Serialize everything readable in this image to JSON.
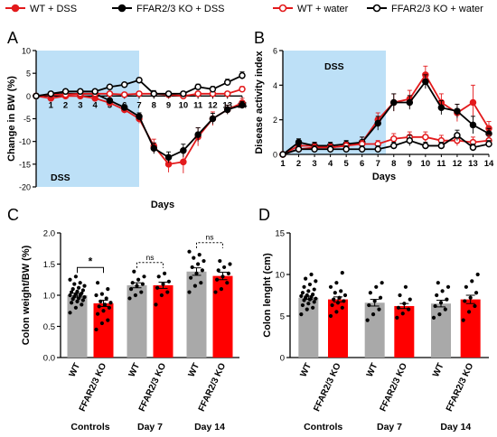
{
  "legend": {
    "entries": [
      {
        "label": "WT + DSS",
        "color": "#e31a1c",
        "marker": "filled"
      },
      {
        "label": "FFAR2/3 KO + DSS",
        "color": "#000000",
        "marker": "filled"
      },
      {
        "label": "WT + water",
        "color": "#e31a1c",
        "marker": "open"
      },
      {
        "label": "FFAR2/3 KO + water",
        "color": "#000000",
        "marker": "open"
      }
    ]
  },
  "chart_data": [
    {
      "panel": "A",
      "type": "line",
      "xlabel": "Days",
      "ylabel": "Change in BW (%)",
      "ylim": [
        -20,
        10
      ],
      "yticks": [
        10,
        5,
        0,
        -5,
        -10,
        -15,
        -20
      ],
      "x": [
        0,
        1,
        2,
        3,
        4,
        5,
        6,
        7,
        8,
        9,
        10,
        11,
        12,
        13,
        14
      ],
      "xticks": [
        1,
        2,
        3,
        4,
        5,
        6,
        7,
        8,
        9,
        10,
        11,
        12,
        13,
        14
      ],
      "shaded_region": {
        "from": 0,
        "to": 7,
        "label": "DSS",
        "color": "#bde0f7"
      },
      "series": [
        {
          "name": "WT + DSS",
          "values": [
            0,
            -0.5,
            0,
            0,
            -0.5,
            -1.5,
            -3,
            -5,
            -11,
            -15,
            -14.5,
            -9,
            -5,
            -3,
            -1.5
          ],
          "err": [
            0,
            0.5,
            0.5,
            0.5,
            0.5,
            0.7,
            0.8,
            1.0,
            1.5,
            1.8,
            2.5,
            2.0,
            1.5,
            1.0,
            1.0
          ],
          "color": "#e31a1c",
          "marker": "filled"
        },
        {
          "name": "FFAR2/3 KO + DSS",
          "values": [
            0,
            0.3,
            0.5,
            0.5,
            0.5,
            -1,
            -2.5,
            -4.5,
            -11.5,
            -13.5,
            -12,
            -8.5,
            -5,
            -3,
            -2
          ],
          "err": [
            0,
            0.3,
            0.3,
            0.3,
            0.4,
            0.5,
            0.6,
            0.8,
            1.2,
            1.2,
            1.4,
            1.5,
            1.2,
            1.0,
            0.8
          ],
          "color": "#000000",
          "marker": "filled"
        },
        {
          "name": "WT + water",
          "values": [
            0,
            0.3,
            0.3,
            0.5,
            0.5,
            0.5,
            0.3,
            0.5,
            0.5,
            0.3,
            0,
            0.5,
            0.5,
            0.5,
            1.5
          ],
          "err": [
            0,
            0.3,
            0.3,
            0.3,
            0.3,
            0.3,
            0.3,
            0.4,
            0.4,
            0.4,
            0.4,
            0.4,
            0.4,
            0.5,
            0.6
          ],
          "color": "#e31a1c",
          "marker": "open"
        },
        {
          "name": "FFAR2/3 KO + water",
          "values": [
            0,
            0.5,
            1,
            1,
            1,
            2,
            2.5,
            3.5,
            0.5,
            0.5,
            0.5,
            2,
            1.5,
            3,
            4.5
          ],
          "err": [
            0,
            0.3,
            0.3,
            0.3,
            0.4,
            0.4,
            0.4,
            0.5,
            0.7,
            0.5,
            0.5,
            0.6,
            0.6,
            0.7,
            0.8
          ],
          "color": "#000000",
          "marker": "open"
        }
      ]
    },
    {
      "panel": "B",
      "type": "line",
      "xlabel": "Days",
      "ylabel": "Disease activity index",
      "ylim": [
        0,
        6
      ],
      "yticks": [
        0,
        2,
        4,
        6
      ],
      "x": [
        1,
        2,
        3,
        4,
        5,
        6,
        7,
        8,
        9,
        10,
        11,
        12,
        13,
        14
      ],
      "xticks": [
        1,
        2,
        3,
        4,
        5,
        6,
        7,
        8,
        9,
        10,
        11,
        12,
        13,
        14
      ],
      "shaded_region": {
        "from": 1,
        "to": 7.5,
        "label": "DSS",
        "color": "#bde0f7"
      },
      "series": [
        {
          "name": "WT + DSS",
          "values": [
            0,
            0.5,
            0.5,
            0.4,
            0.5,
            0.7,
            2,
            3,
            3.2,
            4.6,
            3,
            2.4,
            3,
            1.5
          ],
          "err": [
            0,
            0.2,
            0.2,
            0.2,
            0.2,
            0.3,
            0.4,
            0.5,
            0.5,
            0.5,
            0.5,
            0.5,
            1.0,
            0.4
          ],
          "color": "#e31a1c",
          "marker": "filled"
        },
        {
          "name": "FFAR2/3 KO + DSS",
          "values": [
            0,
            0.7,
            0.5,
            0.5,
            0.6,
            0.7,
            1.8,
            3,
            3,
            4.2,
            2.7,
            2.5,
            1.7,
            1.2
          ],
          "err": [
            0,
            0.2,
            0.2,
            0.2,
            0.2,
            0.3,
            0.4,
            0.5,
            0.4,
            0.4,
            0.4,
            0.4,
            0.5,
            0.3
          ],
          "color": "#000000",
          "marker": "filled"
        },
        {
          "name": "WT + water",
          "values": [
            0,
            0.3,
            0.4,
            0.4,
            0.5,
            0.6,
            0.6,
            0.9,
            1,
            1,
            0.8,
            0.8,
            0.7,
            0.8
          ],
          "err": [
            0,
            0.2,
            0.2,
            0.2,
            0.2,
            0.2,
            0.2,
            0.3,
            0.3,
            0.3,
            0.3,
            0.3,
            0.3,
            0.3
          ],
          "color": "#e31a1c",
          "marker": "open"
        },
        {
          "name": "FFAR2/3 KO + water",
          "values": [
            0,
            0.3,
            0.3,
            0.3,
            0.3,
            0.3,
            0.3,
            0.5,
            0.8,
            0.5,
            0.5,
            1.1,
            0.4,
            0.6
          ],
          "err": [
            0,
            0.2,
            0.2,
            0.2,
            0.2,
            0.2,
            0.2,
            0.2,
            0.3,
            0.2,
            0.2,
            0.3,
            0.2,
            0.2
          ],
          "color": "#000000",
          "marker": "open"
        }
      ]
    },
    {
      "panel": "C",
      "type": "bar",
      "ylabel": "Colon weight/BW (%)",
      "ylim": [
        0,
        2.0
      ],
      "yticks": [
        "0.0",
        "0.5",
        "1.0",
        "1.5",
        "2.0"
      ],
      "categories": [
        "WT",
        "FFAR2/3 KO",
        "WT",
        "FFAR2/3 KO",
        "WT",
        "FFAR2/3 KO"
      ],
      "groups": [
        "Controls",
        "Day 7",
        "Day 14"
      ],
      "values": [
        1.0,
        0.87,
        1.16,
        1.16,
        1.38,
        1.31
      ],
      "err": [
        0.03,
        0.05,
        0.04,
        0.05,
        0.06,
        0.06
      ],
      "bar_colors": [
        "#a9a9a9",
        "#ff0000",
        "#a9a9a9",
        "#ff0000",
        "#a9a9a9",
        "#ff0000"
      ],
      "points": [
        [
          0.72,
          0.8,
          0.85,
          0.88,
          0.9,
          0.92,
          0.94,
          0.95,
          0.97,
          0.98,
          1.0,
          1.0,
          1.02,
          1.03,
          1.05,
          1.06,
          1.08,
          1.1,
          1.12,
          1.15,
          1.18,
          1.2,
          1.25,
          1.3
        ],
        [
          0.45,
          0.55,
          0.6,
          0.7,
          0.75,
          0.8,
          0.82,
          0.85,
          0.88,
          0.9,
          0.95,
          1.0,
          1.02,
          1.1,
          1.2
        ],
        [
          0.95,
          1.0,
          1.05,
          1.1,
          1.15,
          1.18,
          1.2,
          1.25,
          1.3,
          1.38
        ],
        [
          0.85,
          1.0,
          1.05,
          1.12,
          1.18,
          1.22,
          1.3,
          1.35
        ],
        [
          1.05,
          1.15,
          1.2,
          1.28,
          1.35,
          1.4,
          1.45,
          1.5,
          1.55,
          1.6,
          1.65,
          1.7
        ],
        [
          1.05,
          1.1,
          1.2,
          1.25,
          1.3,
          1.35,
          1.4,
          1.45,
          1.5,
          1.55
        ]
      ],
      "comparisons": [
        {
          "a": 0,
          "b": 1,
          "label": "*"
        },
        {
          "a": 2,
          "b": 3,
          "label": "ns"
        },
        {
          "a": 4,
          "b": 5,
          "label": "ns"
        }
      ]
    },
    {
      "panel": "D",
      "type": "bar",
      "ylabel": "Colon lenght (cm)",
      "ylim": [
        0,
        15
      ],
      "yticks": [
        "0",
        "5",
        "10",
        "15"
      ],
      "categories": [
        "WT",
        "FFAR2/3 KO",
        "WT",
        "FFAR2/3 KO",
        "WT",
        "FFAR2/3 KO"
      ],
      "groups": [
        "Controls",
        "Day 7",
        "Day 14"
      ],
      "values": [
        7.2,
        7.0,
        6.6,
        6.2,
        6.5,
        7.0
      ],
      "err": [
        0.2,
        0.3,
        0.4,
        0.3,
        0.4,
        0.5
      ],
      "bar_colors": [
        "#a9a9a9",
        "#ff0000",
        "#a9a9a9",
        "#ff0000",
        "#a9a9a9",
        "#ff0000"
      ],
      "points": [
        [
          5.2,
          5.8,
          6.0,
          6.3,
          6.5,
          6.7,
          6.9,
          7.0,
          7.1,
          7.2,
          7.3,
          7.4,
          7.5,
          7.6,
          7.8,
          8.0,
          8.2,
          8.5,
          8.8,
          9.2,
          9.5,
          10.0
        ],
        [
          5.0,
          5.5,
          6.0,
          6.3,
          6.6,
          6.8,
          7.0,
          7.2,
          7.5,
          7.8,
          8.0,
          8.5,
          9.0,
          10.2
        ],
        [
          4.5,
          5.2,
          5.8,
          6.3,
          6.8,
          7.2,
          7.8,
          8.5,
          9.0
        ],
        [
          4.8,
          5.3,
          5.8,
          6.0,
          6.5,
          7.0,
          7.5,
          8.5
        ],
        [
          4.8,
          5.2,
          5.8,
          6.2,
          6.6,
          7.0,
          7.5,
          8.0,
          8.5,
          9.0
        ],
        [
          4.5,
          5.5,
          6.2,
          6.8,
          7.2,
          7.8,
          8.5,
          9.2,
          10.0
        ]
      ]
    }
  ]
}
